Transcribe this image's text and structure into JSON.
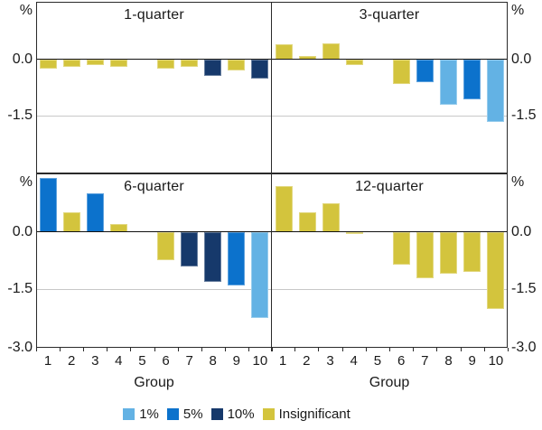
{
  "figure": {
    "unit_label": "%",
    "background": "#ffffff"
  },
  "legend": {
    "items": [
      {
        "label": "1%",
        "color": "#63B2E4"
      },
      {
        "label": "5%",
        "color": "#0C72CC"
      },
      {
        "label": "10%",
        "color": "#16396B"
      },
      {
        "label": "Insignificant",
        "color": "#D3C43D"
      }
    ]
  },
  "chart_data": {
    "type": "bar",
    "categories": [
      "1",
      "2",
      "3",
      "4",
      "5",
      "6",
      "7",
      "8",
      "9",
      "10"
    ],
    "xlabel": "Group",
    "ylabel": "%",
    "ylim": [
      -3.0,
      1.5
    ],
    "yticks": [
      0.0,
      -1.5,
      -3.0
    ],
    "ytick_labels": {
      "zero": "0.0",
      "mid": "-1.5",
      "bottom": "-3.0"
    },
    "gridline_values": [
      0.0,
      -1.5
    ],
    "legend_position": "bottom",
    "grid": "horizontal-only",
    "significance_colors": {
      "1%": "#63B2E4",
      "5%": "#0C72CC",
      "10%": "#16396B",
      "Insignificant": "#D3C43D"
    },
    "panels": [
      {
        "title": "1-quarter",
        "values": [
          -0.25,
          -0.2,
          -0.15,
          -0.2,
          0,
          -0.25,
          -0.2,
          -0.45,
          -0.3,
          -0.5
        ],
        "significance": [
          "Insignificant",
          "Insignificant",
          "Insignificant",
          "Insignificant",
          null,
          "Insignificant",
          "Insignificant",
          "10%",
          "Insignificant",
          "10%"
        ]
      },
      {
        "title": "3-quarter",
        "values": [
          0.4,
          0.08,
          0.42,
          -0.15,
          0,
          -0.65,
          -0.6,
          -1.2,
          -1.05,
          -1.65
        ],
        "significance": [
          "Insignificant",
          "Insignificant",
          "Insignificant",
          "Insignificant",
          null,
          "Insignificant",
          "5%",
          "1%",
          "5%",
          "1%"
        ]
      },
      {
        "title": "6-quarter",
        "values": [
          1.4,
          0.5,
          1.0,
          0.2,
          0,
          -0.75,
          -0.9,
          -1.3,
          -1.4,
          -2.25
        ],
        "significance": [
          "5%",
          "Insignificant",
          "5%",
          "Insignificant",
          null,
          "Insignificant",
          "10%",
          "10%",
          "5%",
          "1%"
        ]
      },
      {
        "title": "12-quarter",
        "values": [
          1.2,
          0.5,
          0.75,
          -0.05,
          0,
          -0.85,
          -1.2,
          -1.1,
          -1.05,
          -2.0
        ],
        "significance": [
          "Insignificant",
          "Insignificant",
          "Insignificant",
          "Insignificant",
          null,
          "Insignificant",
          "Insignificant",
          "Insignificant",
          "Insignificant",
          "Insignificant"
        ]
      }
    ]
  }
}
